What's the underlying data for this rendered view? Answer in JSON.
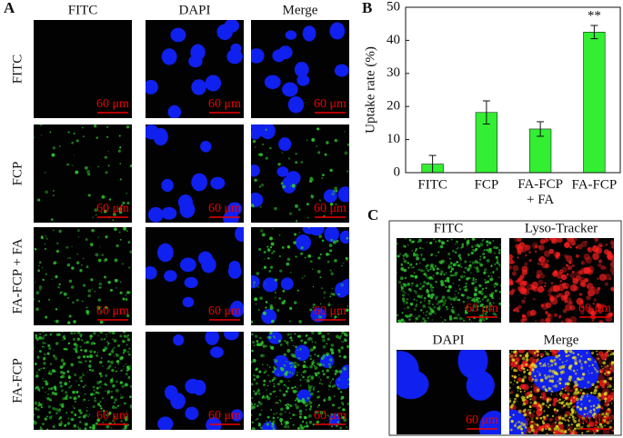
{
  "panel_a": {
    "label": "A",
    "columns": [
      "FITC",
      "DAPI",
      "Merge"
    ],
    "rows": [
      "FITC",
      "FCP",
      "FA-FCP + FA",
      "FA-FCP"
    ],
    "scale_bar": "60 μm"
  },
  "chart_data": {
    "type": "bar",
    "panel_label": "B",
    "ylabel": "Uptake rate (%)",
    "categories": [
      "FITC",
      "FCP",
      "FA-FCP + FA",
      "FA-FCP"
    ],
    "values": [
      2.6,
      18.2,
      13.2,
      42.5
    ],
    "errors": [
      2.6,
      3.5,
      2.2,
      2.0
    ],
    "annotation": "**",
    "color": "#33ee33",
    "ylim": [
      0,
      50
    ],
    "yticks": [
      0,
      10,
      20,
      30,
      40,
      50
    ]
  },
  "panel_c": {
    "label": "C",
    "images": [
      "FITC",
      "Lyso-Tracker",
      "DAPI",
      "Merge"
    ],
    "scale_bar": "60 μm"
  }
}
